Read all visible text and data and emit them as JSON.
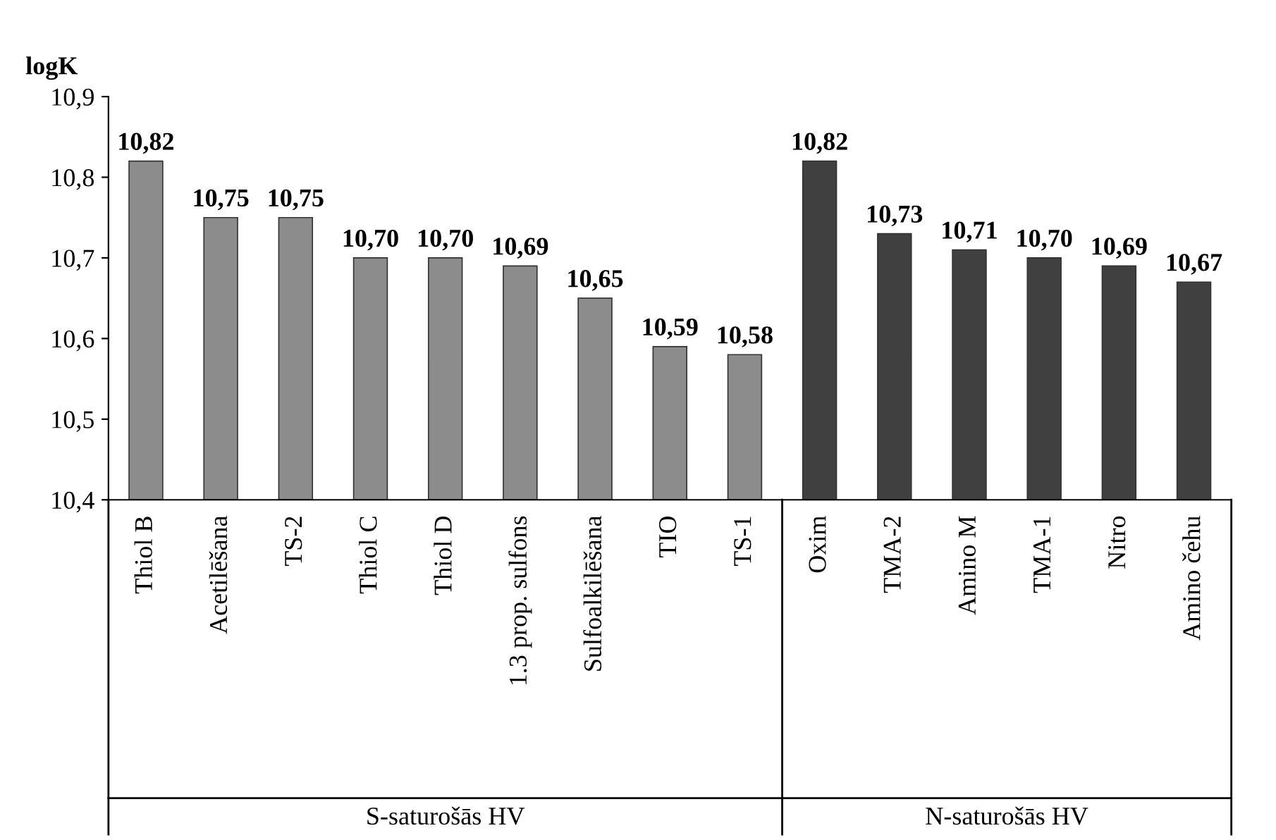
{
  "chart_data": {
    "type": "bar",
    "ylabel": "logK",
    "categories": [
      "Thiol B",
      "Acetilēšana",
      "TS-2",
      "Thiol C",
      "Thiol D",
      "1.3 prop. sulfons",
      "Sulfoalkilēšana",
      "TIO",
      "TS-1",
      "Oxim",
      "TMA-2",
      "Amino M",
      "TMA-1",
      "Nitro",
      "Amino čehu"
    ],
    "values": [
      10.82,
      10.75,
      10.75,
      10.7,
      10.7,
      10.69,
      10.65,
      10.59,
      10.58,
      10.82,
      10.73,
      10.71,
      10.7,
      10.69,
      10.67
    ],
    "value_labels": [
      "10,82",
      "10,75",
      "10,75",
      "10,70",
      "10,70",
      "10,69",
      "10,65",
      "10,59",
      "10,58",
      "10,82",
      "10,73",
      "10,71",
      "10,70",
      "10,69",
      "10,67"
    ],
    "colors": [
      "#8c8c8c",
      "#8c8c8c",
      "#8c8c8c",
      "#8c8c8c",
      "#8c8c8c",
      "#8c8c8c",
      "#8c8c8c",
      "#8c8c8c",
      "#8c8c8c",
      "#404040",
      "#404040",
      "#404040",
      "#404040",
      "#404040",
      "#404040"
    ],
    "ylim": [
      10.4,
      10.9
    ],
    "yticks": [
      {
        "value": 10.4,
        "label": "10,4"
      },
      {
        "value": 10.5,
        "label": "10,5"
      },
      {
        "value": 10.6,
        "label": "10,6"
      },
      {
        "value": 10.7,
        "label": "10,7"
      },
      {
        "value": 10.8,
        "label": "10,8"
      },
      {
        "value": 10.9,
        "label": "10,9"
      }
    ],
    "annotations": [
      "S-saturošās HV",
      "N-saturošās HV"
    ],
    "grid": false,
    "legend": false
  }
}
